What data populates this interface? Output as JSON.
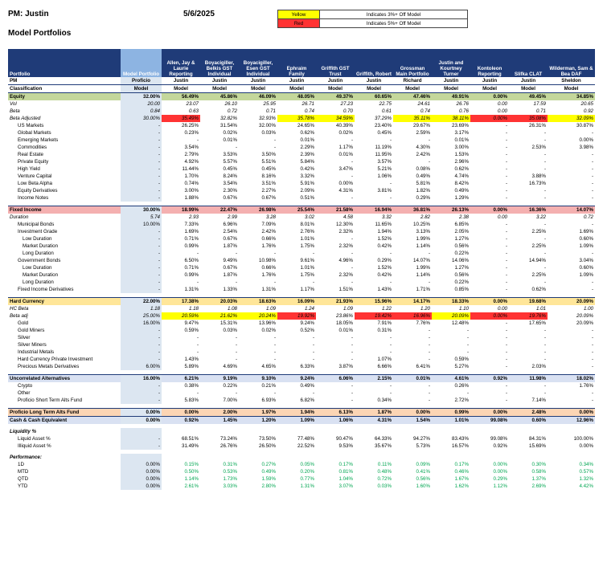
{
  "header": {
    "pm": "PM: Justin",
    "date": "5/6/2025",
    "subtitle": "Model Portfolios",
    "legend": [
      {
        "label": "Yellow",
        "desc": "Indicates 3%+ Off Model",
        "color": "#ffff00"
      },
      {
        "label": "Red",
        "desc": "Indicates 5%+ Off Model",
        "color": "#ff3333"
      }
    ]
  },
  "columns": [
    {
      "name": "Portfolio",
      "pm": "PM",
      "cls": "Classification"
    },
    {
      "name": "Model Portfolio",
      "pm": "Proficio",
      "cls": "Model"
    },
    {
      "name": "Allen, Jay & Laurie Reporting",
      "pm": "Justin",
      "cls": "Model"
    },
    {
      "name": "Boyacigiller, Belkis GST Individual",
      "pm": "Justin",
      "cls": "Model"
    },
    {
      "name": "Boyacigiller, Esen GST Individual",
      "pm": "Justin",
      "cls": "Model"
    },
    {
      "name": "Ephraim Family",
      "pm": "Justin",
      "cls": "Model"
    },
    {
      "name": "Griffith GST Trust",
      "pm": "Justin",
      "cls": "Model"
    },
    {
      "name": "Griffith, Robert",
      "pm": "Justin",
      "cls": "Model"
    },
    {
      "name": "Grossman Main Portfolio",
      "pm": "Richard",
      "cls": "Model"
    },
    {
      "name": "Justin and Kourtney Turner",
      "pm": "Justin",
      "cls": "Model"
    },
    {
      "name": "Kontoleon Reporting",
      "pm": "Justin",
      "cls": "Model"
    },
    {
      "name": "Slifka CLAT",
      "pm": "Justin",
      "cls": "Model"
    },
    {
      "name": "Wilderman, Sam & Bea DAF",
      "pm": "Sheldon",
      "cls": "Model"
    }
  ],
  "rows": [
    {
      "t": "sec",
      "bg": "gs",
      "c": [
        "Equity",
        "32.00%",
        "56.49%",
        "45.86%",
        "46.09%",
        "48.05%",
        "49.37%",
        "60.65%",
        "47.46%",
        "49.91%",
        "0.00%",
        "49.45%",
        "34.85%"
      ]
    },
    {
      "t": "it",
      "c": [
        "Vol",
        "20.00",
        "23.07",
        "26.10",
        "25.95",
        "26.71",
        "27.23",
        "22.75",
        "24.61",
        "26.76",
        "0.00",
        "17.59",
        "20.65"
      ]
    },
    {
      "t": "it",
      "c": [
        "Beta",
        "0.84",
        "0.63",
        "0.72",
        "0.71",
        "0.74",
        "0.70",
        "0.61",
        "0.74",
        "0.76",
        "0.00",
        "0.71",
        "0.92"
      ]
    },
    {
      "t": "it",
      "hl": [
        "",
        "",
        "r",
        "",
        "",
        "y",
        "y",
        "",
        "y",
        "y",
        "r",
        "r",
        "y"
      ],
      "c": [
        "Beta Adjusted",
        "30.00%",
        "35.49%",
        "32.82%",
        "32.93%",
        "35.78%",
        "34.59%",
        "37.29%",
        "35.11%",
        "38.11%",
        "0.00%",
        "35.08%",
        "32.09%"
      ]
    },
    {
      "ind": 1,
      "c": [
        "US Markets",
        "-",
        "26.25%",
        "31.54%",
        "32.00%",
        "24.65%",
        "40.39%",
        "23.40%",
        "29.67%",
        "23.69%",
        "-",
        "26.31%",
        "30.87%"
      ]
    },
    {
      "ind": 1,
      "c": [
        "Global Markets",
        "-",
        "0.23%",
        "0.02%",
        "0.03%",
        "0.62%",
        "0.02%",
        "0.45%",
        "2.59%",
        "3.17%",
        "-",
        "-",
        "-"
      ]
    },
    {
      "ind": 1,
      "c": [
        "Emerging Markets",
        "-",
        "-",
        "0.01%",
        "-",
        "0.01%",
        "-",
        "-",
        "-",
        "0.01%",
        "-",
        "-",
        "0.00%"
      ]
    },
    {
      "ind": 1,
      "c": [
        "Commodities",
        "-",
        "3.54%",
        "-",
        "-",
        "2.29%",
        "1.17%",
        "11.19%",
        "4.30%",
        "3.00%",
        "-",
        "2.53%",
        "3.98%"
      ]
    },
    {
      "ind": 1,
      "c": [
        "Real Estate",
        "-",
        "2.79%",
        "3.53%",
        "3.50%",
        "2.39%",
        "0.01%",
        "11.95%",
        "2.42%",
        "1.53%",
        "-",
        "-",
        "-"
      ]
    },
    {
      "ind": 1,
      "c": [
        "Private Equity",
        "-",
        "4.92%",
        "5.57%",
        "5.51%",
        "5.84%",
        "-",
        "3.57%",
        "-",
        "2.96%",
        "-",
        "-",
        "-"
      ]
    },
    {
      "ind": 1,
      "c": [
        "High Yield",
        "-",
        "11.44%",
        "0.45%",
        "0.45%",
        "0.42%",
        "3.47%",
        "5.21%",
        "0.08%",
        "0.62%",
        "-",
        "-",
        "-"
      ]
    },
    {
      "ind": 1,
      "c": [
        "Venture Capital",
        "-",
        "1.70%",
        "8.24%",
        "8.16%",
        "3.32%",
        "-",
        "1.06%",
        "0.49%",
        "4.74%",
        "-",
        "3.88%",
        "-"
      ]
    },
    {
      "ind": 1,
      "c": [
        "Low Beta Alpha",
        "-",
        "0.74%",
        "3.54%",
        "3.51%",
        "5.91%",
        "0.00%",
        "-",
        "5.81%",
        "8.42%",
        "-",
        "16.73%",
        "-"
      ]
    },
    {
      "ind": 1,
      "c": [
        "Equity Derivatives",
        "-",
        "3.00%",
        "2.30%",
        "2.27%",
        "2.09%",
        "4.31%",
        "3.81%",
        "1.82%",
        "0.49%",
        "-",
        "-",
        "-"
      ]
    },
    {
      "ind": 1,
      "c": [
        "Income Notes",
        "-",
        "1.88%",
        "0.67%",
        "0.67%",
        "0.51%",
        "-",
        "-",
        "0.29%",
        "1.29%",
        "-",
        "-",
        "-"
      ]
    },
    {
      "t": "gap",
      "c": [
        "",
        "",
        "",
        "",
        "",
        "",
        "",
        "",
        "",
        "",
        "",
        "",
        ""
      ]
    },
    {
      "t": "sec",
      "bg": "rs",
      "hl": [
        "",
        "",
        "r",
        "r",
        "r",
        "y",
        "r",
        "r",
        "r",
        "y",
        "r",
        "r",
        "y"
      ],
      "c": [
        "Fixed Income",
        "30.00%",
        "18.99%",
        "22.47%",
        "26.98%",
        "25.54%",
        "21.58%",
        "16.94%",
        "36.81%",
        "26.13%",
        "0.00%",
        "16.36%",
        "14.07%"
      ]
    },
    {
      "t": "it",
      "c": [
        "Duration",
        "5.74",
        "2.93",
        "2.99",
        "3.28",
        "3.02",
        "4.58",
        "3.32",
        "2.82",
        "2.38",
        "0.00",
        "3.22",
        "0.72"
      ]
    },
    {
      "ind": 1,
      "c": [
        "Municipal Bonds",
        "10.00%",
        "7.33%",
        "6.96%",
        "7.09%",
        "8.01%",
        "12.30%",
        "11.65%",
        "10.25%",
        "6.85%",
        "-",
        "-",
        "-"
      ]
    },
    {
      "ind": 1,
      "c": [
        "Investment Grade",
        "-",
        "1.69%",
        "2.54%",
        "2.42%",
        "2.76%",
        "2.32%",
        "1.94%",
        "3.13%",
        "2.05%",
        "-",
        "2.25%",
        "1.69%"
      ]
    },
    {
      "ind": 2,
      "c": [
        "Low Duration",
        "-",
        "0.71%",
        "0.67%",
        "0.66%",
        "1.01%",
        "-",
        "1.52%",
        "1.99%",
        "1.27%",
        "-",
        "-",
        "0.60%"
      ]
    },
    {
      "ind": 2,
      "c": [
        "Market Duration",
        "-",
        "0.99%",
        "1.87%",
        "1.76%",
        "1.75%",
        "2.32%",
        "0.42%",
        "1.14%",
        "0.56%",
        "-",
        "2.25%",
        "1.09%"
      ]
    },
    {
      "ind": 2,
      "c": [
        "Long Duration",
        "-",
        "-",
        "-",
        "-",
        "-",
        "-",
        "-",
        "-",
        "0.22%",
        "-",
        "-",
        "-"
      ]
    },
    {
      "ind": 1,
      "c": [
        "Government Bonds",
        "-",
        "6.50%",
        "9.49%",
        "10.98%",
        "9.61%",
        "4.96%",
        "0.29%",
        "14.07%",
        "14.06%",
        "-",
        "14.94%",
        "3.04%"
      ]
    },
    {
      "ind": 2,
      "c": [
        "Low Duration",
        "-",
        "0.71%",
        "0.67%",
        "0.66%",
        "1.01%",
        "-",
        "1.52%",
        "1.99%",
        "1.27%",
        "-",
        "-",
        "0.60%"
      ]
    },
    {
      "ind": 2,
      "c": [
        "Market Duration",
        "-",
        "0.99%",
        "1.87%",
        "1.76%",
        "1.75%",
        "2.32%",
        "0.42%",
        "1.14%",
        "0.56%",
        "-",
        "2.25%",
        "1.09%"
      ]
    },
    {
      "ind": 2,
      "c": [
        "Long Duration",
        "-",
        "-",
        "-",
        "-",
        "-",
        "-",
        "-",
        "-",
        "0.22%",
        "-",
        "-",
        "-"
      ]
    },
    {
      "ind": 1,
      "c": [
        "Fixed Income Derivatives",
        "-",
        "1.31%",
        "1.33%",
        "1.31%",
        "1.17%",
        "1.51%",
        "1.43%",
        "1.71%",
        "0.85%",
        "-",
        "0.62%",
        "-"
      ]
    },
    {
      "t": "gap",
      "c": [
        "",
        "",
        "",
        "",
        "",
        "",
        "",
        "",
        "",
        "",
        "",
        "",
        ""
      ]
    },
    {
      "t": "sec",
      "bg": "ys",
      "c": [
        "Hard Currency",
        "22.00%",
        "17.38%",
        "20.03%",
        "18.63%",
        "16.09%",
        "21.93%",
        "15.96%",
        "14.17%",
        "18.33%",
        "0.00%",
        "19.68%",
        "20.09%"
      ]
    },
    {
      "t": "it",
      "c": [
        "HC Beta",
        "1.18",
        "1.18",
        "1.08",
        "1.09",
        "1.24",
        "1.09",
        "1.22",
        "1.20",
        "1.10",
        "0.00",
        "1.01",
        "1.00"
      ]
    },
    {
      "t": "it",
      "hl": [
        "",
        "",
        "y",
        "y",
        "y",
        "r",
        "",
        "r",
        "r",
        "y",
        "r",
        "r",
        ""
      ],
      "c": [
        "Beta adj",
        "25.00%",
        "20.59%",
        "21.62%",
        "20.24%",
        "19.92%",
        "23.86%",
        "19.42%",
        "16.96%",
        "20.09%",
        "0.00%",
        "19.76%",
        "20.09%"
      ]
    },
    {
      "ind": 1,
      "c": [
        "Gold",
        "16.00%",
        "9.47%",
        "15.31%",
        "13.96%",
        "9.24%",
        "18.05%",
        "7.91%",
        "7.76%",
        "12.48%",
        "-",
        "17.65%",
        "20.09%"
      ]
    },
    {
      "ind": 1,
      "c": [
        "Gold Miners",
        "-",
        "0.59%",
        "0.03%",
        "0.02%",
        "0.52%",
        "0.01%",
        "0.31%",
        "-",
        "-",
        "-",
        "-",
        "-"
      ]
    },
    {
      "ind": 1,
      "c": [
        "Silver",
        "-",
        "-",
        "-",
        "-",
        "-",
        "-",
        "-",
        "-",
        "-",
        "-",
        "-",
        "-"
      ]
    },
    {
      "ind": 1,
      "c": [
        "Silver Miners",
        "-",
        "-",
        "-",
        "-",
        "-",
        "-",
        "-",
        "-",
        "-",
        "-",
        "-",
        "-"
      ]
    },
    {
      "ind": 1,
      "c": [
        "Industrial Metals",
        "-",
        "-",
        "-",
        "-",
        "-",
        "-",
        "-",
        "-",
        "-",
        "-",
        "-",
        "-"
      ]
    },
    {
      "ind": 1,
      "c": [
        "Hard Currency Private Investment",
        "-",
        "1.43%",
        "-",
        "-",
        "-",
        "-",
        "1.07%",
        "-",
        "0.59%",
        "-",
        "-",
        "-"
      ]
    },
    {
      "ind": 1,
      "c": [
        "Precious Metals Derivatives",
        "6.00%",
        "5.89%",
        "4.69%",
        "4.65%",
        "6.33%",
        "3.87%",
        "6.66%",
        "6.41%",
        "5.27%",
        "-",
        "2.03%",
        "-"
      ]
    },
    {
      "t": "gap",
      "c": [
        "",
        "",
        "",
        "",
        "",
        "",
        "",
        "",
        "",
        "",
        "",
        "",
        ""
      ]
    },
    {
      "t": "sec",
      "bg": "bs",
      "c": [
        "Uncorrelated Alternatives",
        "16.00%",
        "6.21%",
        "9.19%",
        "9.10%",
        "9.24%",
        "6.06%",
        "2.15%",
        "0.01%",
        "4.61%",
        "0.92%",
        "11.98%",
        "18.02%"
      ]
    },
    {
      "ind": 1,
      "c": [
        "Crypto",
        "-",
        "0.38%",
        "0.22%",
        "0.21%",
        "0.49%",
        "-",
        "-",
        "-",
        "0.26%",
        "-",
        "-",
        "1.76%"
      ]
    },
    {
      "ind": 1,
      "c": [
        "Other",
        "-",
        "-",
        "-",
        "-",
        "-",
        "-",
        "-",
        "-",
        "-",
        "-",
        "-",
        "-"
      ]
    },
    {
      "ind": 1,
      "c": [
        "Proficio Short Term Alts Fund",
        "-",
        "5.83%",
        "7.00%",
        "6.93%",
        "6.82%",
        "-",
        "0.34%",
        "-",
        "2.72%",
        "-",
        "7.14%",
        "-"
      ]
    },
    {
      "t": "gap",
      "c": [
        "",
        "",
        "",
        "",
        "",
        "",
        "",
        "",
        "",
        "",
        "",
        "",
        ""
      ]
    },
    {
      "t": "sec",
      "bg": "os",
      "c": [
        "Proficio Long Term Alts Fund",
        "0.00%",
        "0.00%",
        "2.00%",
        "1.97%",
        "1.94%",
        "6.13%",
        "1.87%",
        "0.00%",
        "0.99%",
        "0.00%",
        "2.48%",
        "0.00%"
      ]
    },
    {
      "t": "sec",
      "bg": "bs",
      "c": [
        "Cash & Cash Equivalent",
        "0.00%",
        "0.92%",
        "1.45%",
        "1.20%",
        "1.09%",
        "1.06%",
        "4.31%",
        "1.54%",
        "1.01%",
        "99.08%",
        "0.60%",
        "12.96%"
      ]
    },
    {
      "t": "gap",
      "c": [
        "",
        "",
        "",
        "",
        "",
        "",
        "",
        "",
        "",
        "",
        "",
        "",
        ""
      ]
    },
    {
      "t": "ital",
      "c": [
        "Liquidity %",
        "",
        "",
        "",
        "",
        "",
        "",
        "",
        "",
        "",
        "",
        "",
        ""
      ]
    },
    {
      "ind": 1,
      "c": [
        "Liquid Asset %",
        "-",
        "68.51%",
        "73.24%",
        "73.50%",
        "77.48%",
        "90.47%",
        "64.33%",
        "94.27%",
        "83.43%",
        "99.08%",
        "84.31%",
        "100.00%"
      ]
    },
    {
      "ind": 1,
      "c": [
        "Illiquid Asset %",
        "-",
        "31.49%",
        "26.76%",
        "26.50%",
        "22.52%",
        "9.53%",
        "35.67%",
        "5.73%",
        "16.57%",
        "0.92%",
        "15.69%",
        "0.00%"
      ]
    },
    {
      "t": "gap",
      "c": [
        "",
        "",
        "",
        "",
        "",
        "",
        "",
        "",
        "",
        "",
        "",
        "",
        ""
      ]
    },
    {
      "t": "ital",
      "c": [
        "Performance:",
        "",
        "",
        "",
        "",
        "",
        "",
        "",
        "",
        "",
        "",
        "",
        ""
      ]
    },
    {
      "ind": 1,
      "perf": true,
      "c": [
        "1D",
        "0.00%",
        "0.15%",
        "0.31%",
        "0.27%",
        "0.05%",
        "0.17%",
        "0.11%",
        "0.09%",
        "0.17%",
        "0.00%",
        "0.30%",
        "0.34%"
      ]
    },
    {
      "ind": 1,
      "perf": true,
      "c": [
        "MTD",
        "0.00%",
        "0.50%",
        "0.53%",
        "0.49%",
        "0.20%",
        "0.81%",
        "0.48%",
        "0.41%",
        "0.46%",
        "0.00%",
        "0.58%",
        "0.57%"
      ]
    },
    {
      "ind": 1,
      "perf": true,
      "c": [
        "QTD",
        "0.00%",
        "1.14%",
        "1.73%",
        "1.59%",
        "0.77%",
        "1.04%",
        "0.72%",
        "0.56%",
        "1.67%",
        "0.29%",
        "1.37%",
        "1.32%"
      ]
    },
    {
      "ind": 1,
      "perf": true,
      "c": [
        "YTD",
        "0.00%",
        "2.61%",
        "3.03%",
        "2.80%",
        "1.31%",
        "3.07%",
        "0.03%",
        "1.60%",
        "1.62%",
        "1.12%",
        "2.69%",
        "4.42%"
      ]
    }
  ]
}
